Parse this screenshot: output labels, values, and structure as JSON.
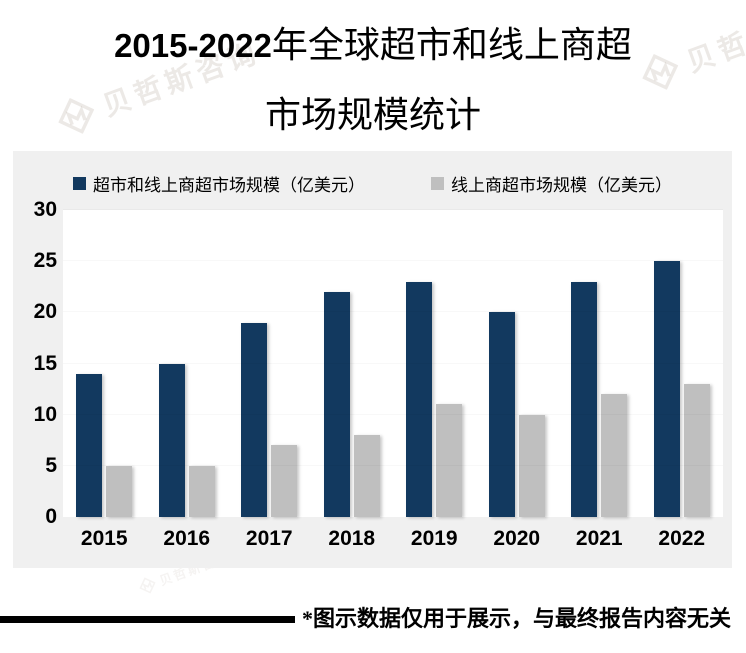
{
  "title": {
    "line1_number": "2015-2022",
    "line1_text": "年全球超市和线上商超",
    "line2": "市场规模统计"
  },
  "watermark": {
    "text": "贝哲斯咨询",
    "logo": "diamond-M-logo"
  },
  "footnote": "*图示数据仅用于展示，与最终报告内容无关",
  "colors": {
    "series1": "#12395f",
    "series2": "#bfbfbf",
    "chart_background": "#f0f0f0",
    "plot_background": "#ffffff",
    "text": "#000000"
  },
  "chart_data": {
    "type": "bar",
    "title": "2015-2022年全球超市和线上商超市场规模统计",
    "categories": [
      "2015",
      "2016",
      "2017",
      "2018",
      "2019",
      "2020",
      "2021",
      "2022"
    ],
    "series": [
      {
        "name": "超市和线上商超市场规模（亿美元）",
        "color": "#12395f",
        "values": [
          14,
          15,
          19,
          22,
          23,
          20,
          23,
          25
        ]
      },
      {
        "name": "线上商超市场规模（亿美元）",
        "color": "#bfbfbf",
        "values": [
          5,
          5,
          7,
          8,
          11,
          10,
          12,
          13
        ]
      }
    ],
    "xlabel": "",
    "ylabel": "",
    "ylim": [
      0,
      30
    ],
    "yticks": [
      0,
      5,
      10,
      15,
      20,
      25,
      30
    ],
    "grid": false,
    "legend_position": "top"
  }
}
